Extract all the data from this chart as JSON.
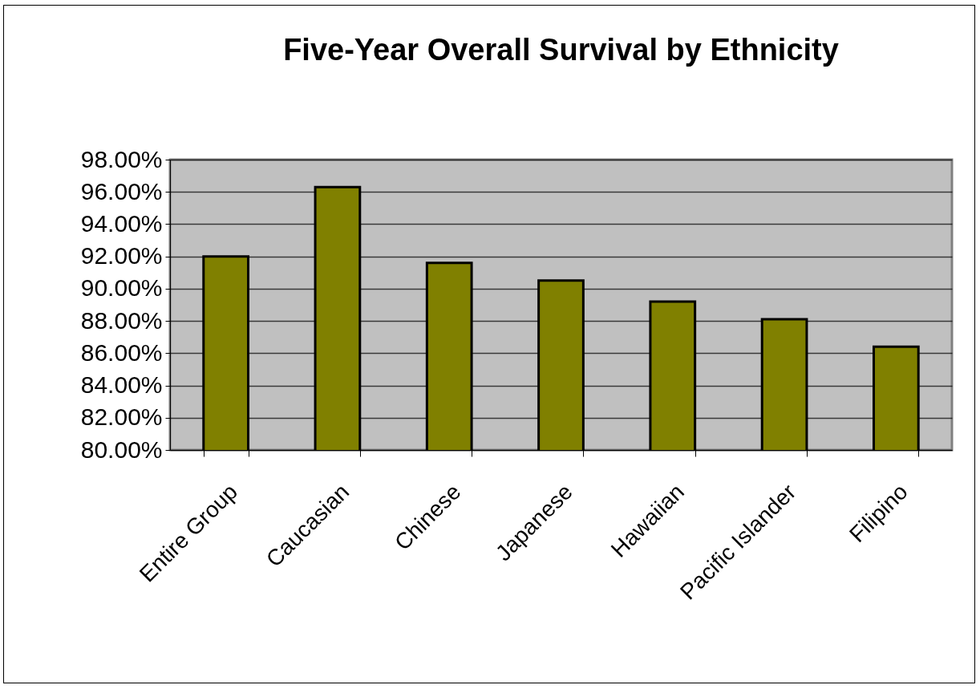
{
  "chart_data": {
    "type": "bar",
    "title": "Five-Year Overall Survival by Ethnicity",
    "categories": [
      "Entire Group",
      "Caucasian",
      "Chinese",
      "Japanese",
      "Hawaiian",
      "Pacific Islander",
      "Filipino"
    ],
    "values": [
      92.0,
      96.3,
      91.6,
      90.5,
      89.2,
      88.1,
      86.4
    ],
    "color": "#808000",
    "ylim": [
      80,
      98
    ],
    "yticks": [
      {
        "value": 80,
        "label": "80.00%"
      },
      {
        "value": 82,
        "label": "82.00%"
      },
      {
        "value": 84,
        "label": "84.00%"
      },
      {
        "value": 86,
        "label": "86.00%"
      },
      {
        "value": 88,
        "label": "88.00%"
      },
      {
        "value": 90,
        "label": "90.00%"
      },
      {
        "value": 92,
        "label": "92.00%"
      },
      {
        "value": 94,
        "label": "94.00%"
      },
      {
        "value": 96,
        "label": "96.00%"
      },
      {
        "value": 98,
        "label": "98.00%"
      }
    ],
    "grid": "y"
  }
}
